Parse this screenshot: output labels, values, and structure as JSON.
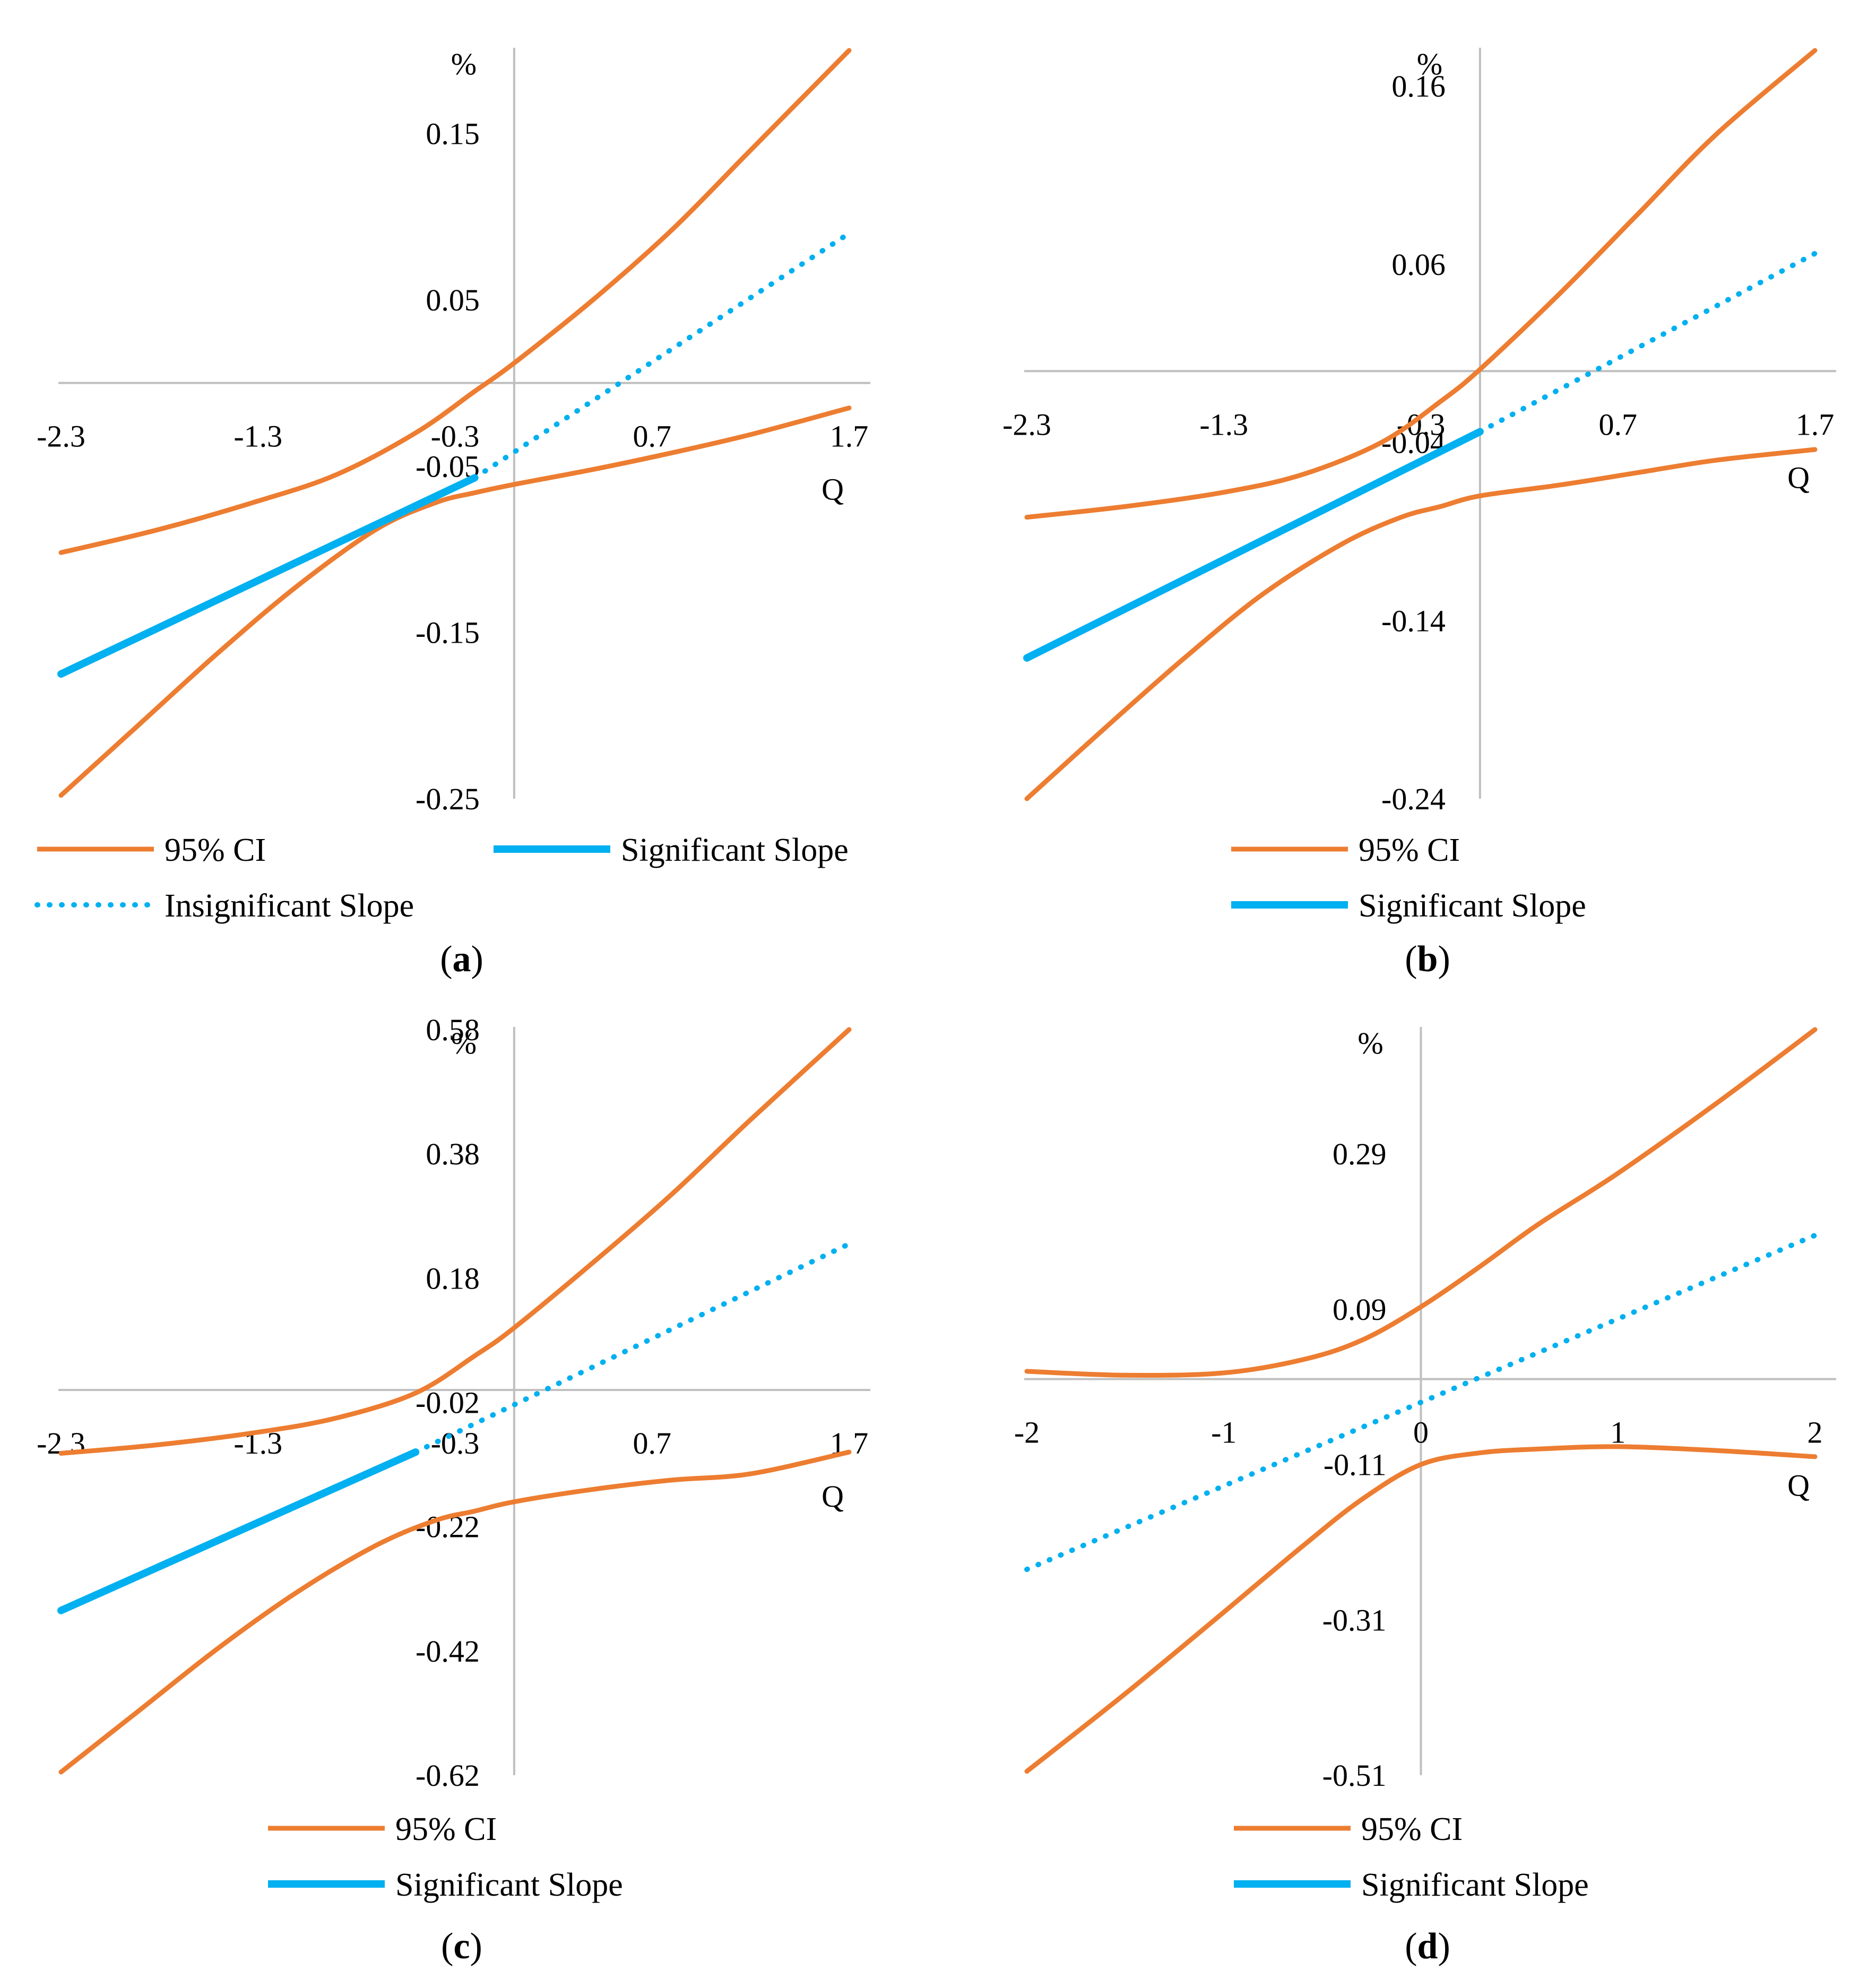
{
  "figure": {
    "description_text": "",
    "panels_order": [
      "a",
      "b",
      "c",
      "d"
    ]
  },
  "colors": {
    "ci": "#ED7D31",
    "slope": "#00B0F0",
    "axis": "#BFBFBF",
    "text": "#000000"
  },
  "chart_data": [
    {
      "id": "a",
      "type": "line",
      "caption_letter": "a",
      "ylabel": "%",
      "xlabel": "Q",
      "xlim": [
        -2.3,
        1.7
      ],
      "ylim": [
        -0.25,
        0.2
      ],
      "x_ticks": [
        "-2.3",
        "-1.3",
        "-0.3",
        "0.7",
        "1.7"
      ],
      "y_ticks": [
        "0.15",
        "0.05",
        "-0.05",
        "-0.15",
        "-0.25"
      ],
      "y_tick_values": [
        0.15,
        0.05,
        -0.05,
        -0.15,
        -0.25
      ],
      "x_axis_value": 0.0,
      "y_axis_value": 0.0,
      "series": [
        {
          "name": "95% CI (upper)",
          "role": "ci",
          "x": [
            -2.3,
            -1.8,
            -1.3,
            -0.9,
            -0.5,
            -0.2,
            0.0,
            0.4,
            0.8,
            1.2,
            1.7
          ],
          "y": [
            -0.102,
            -0.088,
            -0.071,
            -0.055,
            -0.03,
            -0.005,
            0.012,
            0.05,
            0.092,
            0.14,
            0.2
          ]
        },
        {
          "name": "95% CI (lower)",
          "role": "ci",
          "x": [
            -2.3,
            -1.9,
            -1.5,
            -1.1,
            -0.7,
            -0.4,
            -0.2,
            0.0,
            0.4,
            0.8,
            1.2,
            1.7
          ],
          "y": [
            -0.248,
            -0.205,
            -0.162,
            -0.122,
            -0.088,
            -0.072,
            -0.066,
            -0.061,
            -0.052,
            -0.042,
            -0.031,
            -0.015
          ]
        },
        {
          "name": "Significant Slope",
          "role": "significant",
          "x": [
            -2.3,
            -0.2
          ],
          "y": [
            -0.175,
            -0.057
          ]
        },
        {
          "name": "Insignificant Slope",
          "role": "insignificant",
          "x": [
            -0.2,
            1.7
          ],
          "y": [
            -0.057,
            0.09
          ]
        }
      ],
      "legend": [
        {
          "label": "95% CI",
          "role": "ci"
        },
        {
          "label": "Significant Slope",
          "role": "significant"
        },
        {
          "label": "Insignificant Slope",
          "role": "insignificant"
        }
      ]
    },
    {
      "id": "b",
      "type": "line",
      "caption_letter": "b",
      "ylabel": "%",
      "xlabel": "Q",
      "xlim": [
        -2.3,
        1.7
      ],
      "ylim": [
        -0.24,
        0.18
      ],
      "x_ticks": [
        "-2.3",
        "-1.3",
        "-0.3",
        "0.7",
        "1.7"
      ],
      "y_ticks": [
        "0.16",
        "0.06",
        "-0.04",
        "-0.14",
        "-0.24"
      ],
      "y_tick_values": [
        0.16,
        0.06,
        -0.04,
        -0.14,
        -0.24
      ],
      "x_axis_value": 0.0,
      "y_axis_value": 0.0,
      "series": [
        {
          "name": "95% CI (upper)",
          "role": "ci",
          "x": [
            -2.3,
            -1.8,
            -1.3,
            -0.9,
            -0.5,
            -0.2,
            0.0,
            0.4,
            0.8,
            1.2,
            1.7
          ],
          "y": [
            -0.082,
            -0.076,
            -0.068,
            -0.058,
            -0.04,
            -0.017,
            0.001,
            0.043,
            0.088,
            0.133,
            0.18
          ]
        },
        {
          "name": "95% CI (lower)",
          "role": "ci",
          "x": [
            -2.3,
            -1.9,
            -1.5,
            -1.1,
            -0.7,
            -0.4,
            -0.2,
            0.0,
            0.4,
            0.8,
            1.2,
            1.7
          ],
          "y": [
            -0.24,
            -0.2,
            -0.161,
            -0.125,
            -0.097,
            -0.082,
            -0.076,
            -0.07,
            -0.064,
            -0.057,
            -0.05,
            -0.044
          ]
        },
        {
          "name": "Significant Slope",
          "role": "significant",
          "x": [
            -2.3,
            0.0
          ],
          "y": [
            -0.161,
            -0.034
          ]
        },
        {
          "name": "Insignificant Slope",
          "role": "insignificant",
          "x": [
            0.0,
            1.7
          ],
          "y": [
            -0.034,
            0.066
          ]
        }
      ],
      "legend": [
        {
          "label": "95% CI",
          "role": "ci"
        },
        {
          "label": "Significant Slope",
          "role": "significant"
        }
      ]
    },
    {
      "id": "c",
      "type": "line",
      "caption_letter": "c",
      "ylabel": "%",
      "xlabel": "Q",
      "xlim": [
        -2.3,
        1.7
      ],
      "ylim": [
        -0.62,
        0.58
      ],
      "x_ticks": [
        "-2.3",
        "-1.3",
        "-0.3",
        "0.7",
        "1.7"
      ],
      "y_ticks": [
        "0.58",
        "0.38",
        "0.18",
        "-0.02",
        "-0.22",
        "-0.42",
        "-0.62"
      ],
      "y_tick_values": [
        0.58,
        0.38,
        0.18,
        -0.02,
        -0.22,
        -0.42,
        -0.62
      ],
      "x_axis_value": 0.0,
      "y_axis_value": 0.0,
      "series": [
        {
          "name": "95% CI (upper)",
          "role": "ci",
          "x": [
            -2.3,
            -1.8,
            -1.3,
            -0.9,
            -0.5,
            -0.2,
            0.0,
            0.4,
            0.8,
            1.2,
            1.7
          ],
          "y": [
            -0.102,
            -0.088,
            -0.068,
            -0.045,
            -0.005,
            0.055,
            0.1,
            0.205,
            0.315,
            0.435,
            0.58
          ]
        },
        {
          "name": "95% CI (lower)",
          "role": "ci",
          "x": [
            -2.3,
            -1.9,
            -1.5,
            -1.1,
            -0.7,
            -0.4,
            -0.2,
            0.0,
            0.4,
            0.8,
            1.2,
            1.7
          ],
          "y": [
            -0.615,
            -0.515,
            -0.415,
            -0.325,
            -0.25,
            -0.21,
            -0.195,
            -0.18,
            -0.16,
            -0.145,
            -0.135,
            -0.1
          ]
        },
        {
          "name": "Significant Slope",
          "role": "significant",
          "x": [
            -2.3,
            -0.5
          ],
          "y": [
            -0.355,
            -0.1
          ]
        },
        {
          "name": "Insignificant Slope",
          "role": "insignificant",
          "x": [
            -0.5,
            1.7
          ],
          "y": [
            -0.1,
            0.235
          ]
        }
      ],
      "legend": [
        {
          "label": "95% CI",
          "role": "ci"
        },
        {
          "label": "Significant Slope",
          "role": "significant"
        }
      ]
    },
    {
      "id": "d",
      "type": "line",
      "caption_letter": "d",
      "ylabel": "%",
      "xlabel": "Q",
      "xlim": [
        -2.0,
        2.0
      ],
      "ylim": [
        -0.51,
        0.45
      ],
      "x_ticks": [
        "-2",
        "-1",
        "0",
        "1",
        "2"
      ],
      "y_ticks": [
        "0.29",
        "0.09",
        "-0.11",
        "-0.31",
        "-0.51"
      ],
      "y_tick_values": [
        0.29,
        0.09,
        -0.11,
        -0.31,
        -0.51
      ],
      "x_axis_value": 0.0,
      "y_axis_value": 0.0,
      "series": [
        {
          "name": "95% CI (upper)",
          "role": "ci",
          "x": [
            -2.0,
            -1.5,
            -1.0,
            -0.6,
            -0.3,
            0.0,
            0.3,
            0.6,
            1.0,
            1.5,
            2.0
          ],
          "y": [
            0.01,
            0.005,
            0.008,
            0.025,
            0.05,
            0.093,
            0.145,
            0.2,
            0.265,
            0.355,
            0.45
          ]
        },
        {
          "name": "95% CI (lower)",
          "role": "ci",
          "x": [
            -2.0,
            -1.5,
            -1.0,
            -0.6,
            -0.3,
            0.0,
            0.3,
            0.6,
            1.0,
            1.5,
            2.0
          ],
          "y": [
            -0.505,
            -0.405,
            -0.3,
            -0.215,
            -0.155,
            -0.11,
            -0.095,
            -0.09,
            -0.087,
            -0.092,
            -0.1
          ]
        },
        {
          "name": "Insignificant Slope",
          "role": "insignificant",
          "x": [
            -2.0,
            2.0
          ],
          "y": [
            -0.245,
            0.185
          ]
        }
      ],
      "legend": [
        {
          "label": "95% CI",
          "role": "ci"
        },
        {
          "label": "Significant Slope",
          "role": "significant"
        }
      ]
    }
  ]
}
